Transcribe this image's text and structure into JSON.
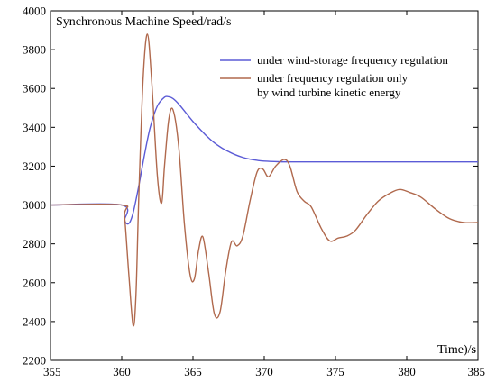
{
  "chart_data": {
    "type": "line",
    "title": "Synchronous Machine Speed/rad/s",
    "xlabel_main": "Time)/",
    "xlabel_unit": "s",
    "xlim": [
      355,
      385
    ],
    "ylim": [
      2200,
      4000
    ],
    "x_ticks": [
      355,
      360,
      365,
      370,
      375,
      380,
      385
    ],
    "y_ticks": [
      2200,
      2400,
      2600,
      2800,
      3000,
      3200,
      3400,
      3600,
      3800,
      4000
    ],
    "x_tick_labels": [
      "355",
      "360",
      "365",
      "370",
      "375",
      "380",
      "385"
    ],
    "y_tick_labels": [
      "2200",
      "2400",
      "2600",
      "2800",
      "3000",
      "3200",
      "3400",
      "3600",
      "3800",
      "4000"
    ],
    "legend_position": "top-right",
    "series": [
      {
        "name": "under wind-storage frequency regulation",
        "color": "#5b5bd6",
        "x": [
          355,
          360,
          360.2,
          360.5,
          360.8,
          361.2,
          361.6,
          362.0,
          362.5,
          363.0,
          363.3,
          363.6,
          364.0,
          364.5,
          365.0,
          365.5,
          366,
          366.5,
          367,
          367.5,
          368,
          368.5,
          369,
          369.5,
          370,
          371,
          372,
          373,
          375,
          380,
          385
        ],
        "y": [
          3000,
          3000,
          2920,
          2905,
          2960,
          3100,
          3260,
          3400,
          3510,
          3555,
          3557,
          3548,
          3520,
          3475,
          3430,
          3390,
          3352,
          3320,
          3295,
          3275,
          3258,
          3245,
          3236,
          3230,
          3226,
          3223,
          3222,
          3222,
          3222,
          3222,
          3222
        ]
      },
      {
        "name": "under frequency regulation only",
        "name_line2": "by wind turbine kinetic energy",
        "color": "#b0694d",
        "x": [
          355,
          360,
          360.2,
          360.5,
          360.8,
          361.0,
          361.2,
          361.5,
          361.8,
          362.1,
          362.5,
          362.8,
          363.0,
          363.3,
          363.6,
          364.0,
          364.4,
          364.8,
          365.1,
          365.4,
          365.7,
          366.1,
          366.5,
          366.9,
          367.3,
          367.7,
          368.1,
          368.5,
          369.0,
          369.5,
          369.9,
          370.3,
          370.8,
          371.4,
          371.8,
          372.3,
          372.8,
          373.3,
          374.0,
          374.6,
          375.2,
          375.8,
          376.4,
          377.2,
          378.0,
          378.8,
          379.5,
          380.2,
          381.0,
          382.0,
          383.0,
          384.0,
          385.0
        ],
        "y": [
          3000,
          3000,
          2940,
          2640,
          2380,
          2540,
          3050,
          3650,
          3880,
          3640,
          3150,
          3010,
          3200,
          3440,
          3490,
          3300,
          2900,
          2640,
          2620,
          2770,
          2835,
          2650,
          2440,
          2450,
          2660,
          2810,
          2790,
          2840,
          3020,
          3170,
          3185,
          3145,
          3200,
          3235,
          3200,
          3070,
          3020,
          2990,
          2880,
          2815,
          2830,
          2840,
          2870,
          2950,
          3020,
          3060,
          3080,
          3065,
          3040,
          2980,
          2930,
          2910,
          2910
        ]
      }
    ]
  }
}
